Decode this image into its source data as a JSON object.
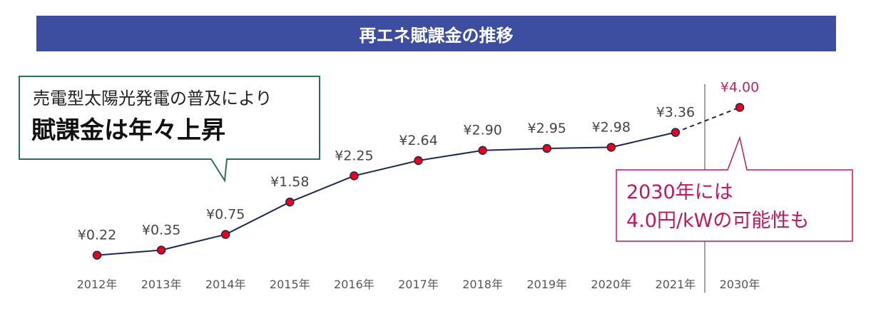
{
  "header": {
    "title": "再エネ賦課金の推移"
  },
  "callout_left": {
    "line1": "売電型太陽光発電の普及により",
    "line2": "賦課金は年々上昇"
  },
  "callout_right": {
    "line1": "2030年には",
    "line2": "4.0円/kWの可能性も"
  },
  "colors": {
    "banner": "#3d4da0",
    "line": "#1b2a55",
    "marker": "#e8001c",
    "projection": "#c0175f",
    "callout_left_border": "#2f6b5e"
  },
  "chart_data": {
    "type": "line",
    "categories": [
      "2012年",
      "2013年",
      "2014年",
      "2015年",
      "2016年",
      "2017年",
      "2018年",
      "2019年",
      "2020年",
      "2021年",
      "2030年"
    ],
    "values": [
      0.22,
      0.35,
      0.75,
      1.58,
      2.25,
      2.64,
      2.9,
      2.95,
      2.98,
      3.36,
      4.0
    ],
    "value_labels": [
      "¥0.22",
      "¥0.35",
      "¥0.75",
      "¥1.58",
      "¥2.25",
      "¥2.64",
      "¥2.90",
      "¥2.95",
      "¥2.98",
      "¥3.36",
      "¥4.00"
    ],
    "projected_from_index": 9,
    "title": "再エネ賦課金の推移",
    "xlabel": "",
    "ylabel": "",
    "grid": false,
    "legend": "none"
  }
}
